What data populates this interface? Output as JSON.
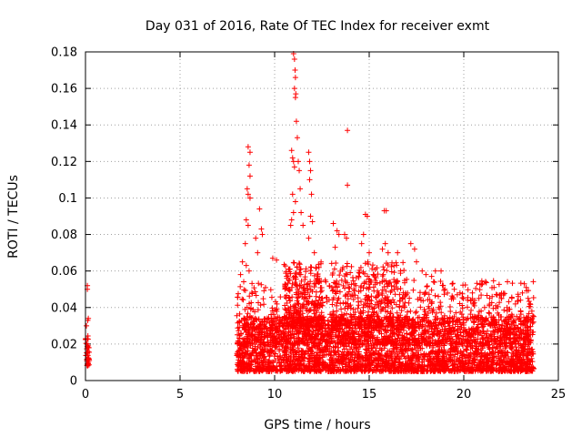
{
  "chart_data": {
    "type": "scatter",
    "title": "Day 031 of 2016, Rate Of TEC Index for receiver exmt",
    "xlabel": "GPS time / hours",
    "ylabel": "ROTI / TECUs",
    "xlim": [
      0,
      25
    ],
    "ylim": [
      0,
      0.18
    ],
    "x_ticks": [
      0,
      5,
      10,
      15,
      20,
      25
    ],
    "x_tick_labels": [
      "0",
      "5",
      "10",
      "15",
      "20",
      "25"
    ],
    "y_ticks": [
      0,
      0.02,
      0.04,
      0.06,
      0.08,
      0.1,
      0.12,
      0.14,
      0.16,
      0.18
    ],
    "y_tick_labels": [
      "0",
      "0.02",
      "0.04",
      "0.06",
      "0.08",
      "0.1",
      "0.12",
      "0.14",
      "0.16",
      "0.18"
    ],
    "grid": true,
    "marker": "+",
    "color": "#ff0000",
    "series": [
      {
        "name": "ROTI",
        "points": [
          [
            0.1,
            0.052
          ],
          [
            0.1,
            0.05
          ],
          [
            0.12,
            0.033
          ],
          [
            0.15,
            0.034
          ],
          [
            0.08,
            0.02
          ],
          [
            0.1,
            0.015
          ],
          [
            0.12,
            0.012
          ],
          [
            0.15,
            0.01
          ],
          [
            0.1,
            0.009
          ],
          [
            0.2,
            0.011
          ],
          [
            0.18,
            0.018
          ],
          [
            0.05,
            0.03
          ],
          [
            8.6,
            0.128
          ],
          [
            8.7,
            0.125
          ],
          [
            8.65,
            0.118
          ],
          [
            8.7,
            0.112
          ],
          [
            8.55,
            0.105
          ],
          [
            8.6,
            0.102
          ],
          [
            8.7,
            0.1
          ],
          [
            8.5,
            0.088
          ],
          [
            8.6,
            0.085
          ],
          [
            8.45,
            0.075
          ],
          [
            8.3,
            0.065
          ],
          [
            8.5,
            0.063
          ],
          [
            8.65,
            0.06
          ],
          [
            8.2,
            0.058
          ],
          [
            9.2,
            0.094
          ],
          [
            9.3,
            0.083
          ],
          [
            9.35,
            0.08
          ],
          [
            9.0,
            0.078
          ],
          [
            9.1,
            0.07
          ],
          [
            9.9,
            0.067
          ],
          [
            10.1,
            0.066
          ],
          [
            10.9,
            0.126
          ],
          [
            10.95,
            0.122
          ],
          [
            11.0,
            0.12
          ],
          [
            11.05,
            0.117
          ],
          [
            10.95,
            0.102
          ],
          [
            11.0,
            0.092
          ],
          [
            10.9,
            0.088
          ],
          [
            10.85,
            0.085
          ],
          [
            11.1,
            0.098
          ],
          [
            11.0,
            0.179
          ],
          [
            11.05,
            0.176
          ],
          [
            11.08,
            0.17
          ],
          [
            11.1,
            0.166
          ],
          [
            11.05,
            0.16
          ],
          [
            11.12,
            0.157
          ],
          [
            11.1,
            0.155
          ],
          [
            11.15,
            0.142
          ],
          [
            11.2,
            0.133
          ],
          [
            11.25,
            0.12
          ],
          [
            11.3,
            0.115
          ],
          [
            11.35,
            0.105
          ],
          [
            11.4,
            0.092
          ],
          [
            11.5,
            0.085
          ],
          [
            11.8,
            0.125
          ],
          [
            11.85,
            0.12
          ],
          [
            11.9,
            0.115
          ],
          [
            11.85,
            0.11
          ],
          [
            11.95,
            0.102
          ],
          [
            11.9,
            0.09
          ],
          [
            12.0,
            0.087
          ],
          [
            11.8,
            0.078
          ],
          [
            12.1,
            0.07
          ],
          [
            13.1,
            0.086
          ],
          [
            13.3,
            0.082
          ],
          [
            13.4,
            0.08
          ],
          [
            13.2,
            0.073
          ],
          [
            13.7,
            0.08
          ],
          [
            13.8,
            0.078
          ],
          [
            13.85,
            0.137
          ],
          [
            13.85,
            0.107
          ],
          [
            14.8,
            0.091
          ],
          [
            14.9,
            0.09
          ],
          [
            14.7,
            0.08
          ],
          [
            14.6,
            0.075
          ],
          [
            15.0,
            0.07
          ],
          [
            15.8,
            0.093
          ],
          [
            15.9,
            0.093
          ],
          [
            15.85,
            0.075
          ],
          [
            15.7,
            0.072
          ],
          [
            16.0,
            0.07
          ],
          [
            16.5,
            0.07
          ],
          [
            17.2,
            0.075
          ],
          [
            17.4,
            0.072
          ],
          [
            17.5,
            0.065
          ],
          [
            17.8,
            0.06
          ],
          [
            18.0,
            0.058
          ],
          [
            18.3,
            0.057
          ],
          [
            18.5,
            0.06
          ],
          [
            18.8,
            0.06
          ],
          [
            19.0,
            0.05
          ],
          [
            19.5,
            0.05
          ],
          [
            19.8,
            0.048
          ],
          [
            20.2,
            0.044
          ],
          [
            20.5,
            0.042
          ],
          [
            20.8,
            0.045
          ],
          [
            21.1,
            0.04
          ],
          [
            21.5,
            0.046
          ],
          [
            21.6,
            0.051
          ],
          [
            22.0,
            0.045
          ],
          [
            22.3,
            0.038
          ],
          [
            22.8,
            0.035
          ],
          [
            23.0,
            0.044
          ],
          [
            23.1,
            0.048
          ],
          [
            23.2,
            0.053
          ],
          [
            23.3,
            0.051
          ],
          [
            23.4,
            0.045
          ],
          [
            23.5,
            0.042
          ],
          [
            23.6,
            0.038
          ],
          [
            23.7,
            0.035
          ]
        ],
        "dense_regions": [
          {
            "x_range": [
              8.0,
              23.7
            ],
            "y_range": [
              0.005,
              0.035
            ],
            "count": 3200
          },
          {
            "x_range": [
              8.0,
              23.7
            ],
            "y_range": [
              0.02,
              0.055
            ],
            "count": 900
          },
          {
            "x_range": [
              10.5,
              12.5
            ],
            "y_range": [
              0.03,
              0.065
            ],
            "count": 250
          },
          {
            "x_range": [
              13.0,
              17.0
            ],
            "y_range": [
              0.03,
              0.065
            ],
            "count": 300
          },
          {
            "x_range": [
              0.0,
              0.2
            ],
            "y_range": [
              0.008,
              0.025
            ],
            "count": 30
          }
        ]
      }
    ]
  }
}
